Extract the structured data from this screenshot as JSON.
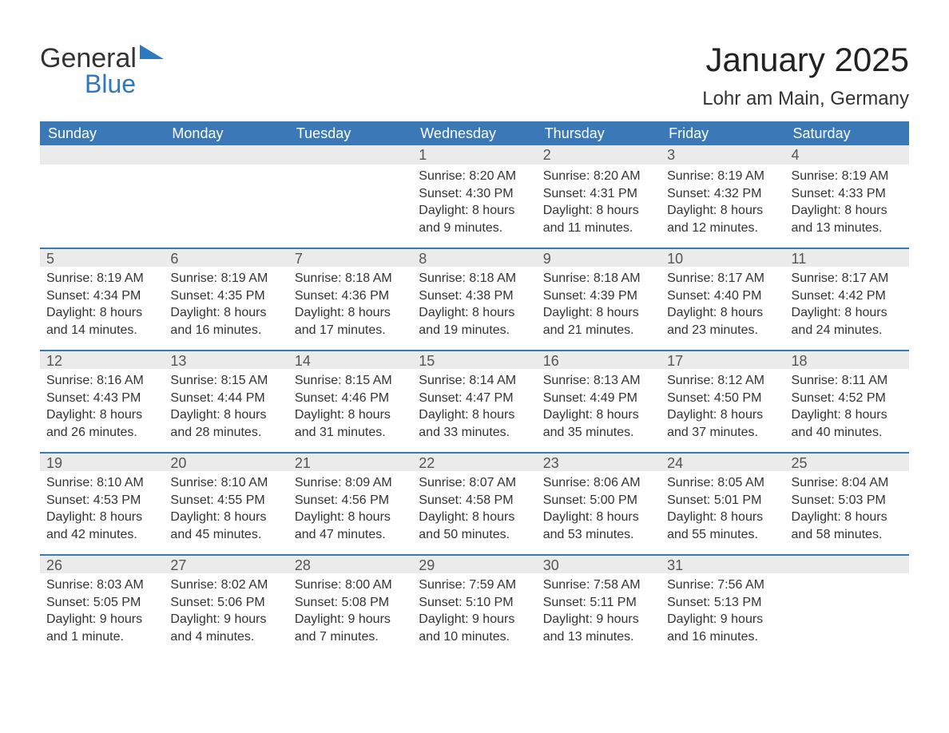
{
  "logo": {
    "word1": "General",
    "word2": "Blue"
  },
  "title": "January 2025",
  "location": "Lohr am Main, Germany",
  "colors": {
    "header_bg": "#3b78b8",
    "header_text": "#ffffff",
    "daynum_bg": "#ebebeb",
    "border": "#3b78b8",
    "body_text": "#333333",
    "logo_blue": "#2f78bf"
  },
  "weekdays": [
    "Sunday",
    "Monday",
    "Tuesday",
    "Wednesday",
    "Thursday",
    "Friday",
    "Saturday"
  ],
  "weeks": [
    [
      {
        "n": "",
        "sr": "",
        "ss": "",
        "dl": ""
      },
      {
        "n": "",
        "sr": "",
        "ss": "",
        "dl": ""
      },
      {
        "n": "",
        "sr": "",
        "ss": "",
        "dl": ""
      },
      {
        "n": "1",
        "sr": "Sunrise: 8:20 AM",
        "ss": "Sunset: 4:30 PM",
        "dl": "Daylight: 8 hours and 9 minutes."
      },
      {
        "n": "2",
        "sr": "Sunrise: 8:20 AM",
        "ss": "Sunset: 4:31 PM",
        "dl": "Daylight: 8 hours and 11 minutes."
      },
      {
        "n": "3",
        "sr": "Sunrise: 8:19 AM",
        "ss": "Sunset: 4:32 PM",
        "dl": "Daylight: 8 hours and 12 minutes."
      },
      {
        "n": "4",
        "sr": "Sunrise: 8:19 AM",
        "ss": "Sunset: 4:33 PM",
        "dl": "Daylight: 8 hours and 13 minutes."
      }
    ],
    [
      {
        "n": "5",
        "sr": "Sunrise: 8:19 AM",
        "ss": "Sunset: 4:34 PM",
        "dl": "Daylight: 8 hours and 14 minutes."
      },
      {
        "n": "6",
        "sr": "Sunrise: 8:19 AM",
        "ss": "Sunset: 4:35 PM",
        "dl": "Daylight: 8 hours and 16 minutes."
      },
      {
        "n": "7",
        "sr": "Sunrise: 8:18 AM",
        "ss": "Sunset: 4:36 PM",
        "dl": "Daylight: 8 hours and 17 minutes."
      },
      {
        "n": "8",
        "sr": "Sunrise: 8:18 AM",
        "ss": "Sunset: 4:38 PM",
        "dl": "Daylight: 8 hours and 19 minutes."
      },
      {
        "n": "9",
        "sr": "Sunrise: 8:18 AM",
        "ss": "Sunset: 4:39 PM",
        "dl": "Daylight: 8 hours and 21 minutes."
      },
      {
        "n": "10",
        "sr": "Sunrise: 8:17 AM",
        "ss": "Sunset: 4:40 PM",
        "dl": "Daylight: 8 hours and 23 minutes."
      },
      {
        "n": "11",
        "sr": "Sunrise: 8:17 AM",
        "ss": "Sunset: 4:42 PM",
        "dl": "Daylight: 8 hours and 24 minutes."
      }
    ],
    [
      {
        "n": "12",
        "sr": "Sunrise: 8:16 AM",
        "ss": "Sunset: 4:43 PM",
        "dl": "Daylight: 8 hours and 26 minutes."
      },
      {
        "n": "13",
        "sr": "Sunrise: 8:15 AM",
        "ss": "Sunset: 4:44 PM",
        "dl": "Daylight: 8 hours and 28 minutes."
      },
      {
        "n": "14",
        "sr": "Sunrise: 8:15 AM",
        "ss": "Sunset: 4:46 PM",
        "dl": "Daylight: 8 hours and 31 minutes."
      },
      {
        "n": "15",
        "sr": "Sunrise: 8:14 AM",
        "ss": "Sunset: 4:47 PM",
        "dl": "Daylight: 8 hours and 33 minutes."
      },
      {
        "n": "16",
        "sr": "Sunrise: 8:13 AM",
        "ss": "Sunset: 4:49 PM",
        "dl": "Daylight: 8 hours and 35 minutes."
      },
      {
        "n": "17",
        "sr": "Sunrise: 8:12 AM",
        "ss": "Sunset: 4:50 PM",
        "dl": "Daylight: 8 hours and 37 minutes."
      },
      {
        "n": "18",
        "sr": "Sunrise: 8:11 AM",
        "ss": "Sunset: 4:52 PM",
        "dl": "Daylight: 8 hours and 40 minutes."
      }
    ],
    [
      {
        "n": "19",
        "sr": "Sunrise: 8:10 AM",
        "ss": "Sunset: 4:53 PM",
        "dl": "Daylight: 8 hours and 42 minutes."
      },
      {
        "n": "20",
        "sr": "Sunrise: 8:10 AM",
        "ss": "Sunset: 4:55 PM",
        "dl": "Daylight: 8 hours and 45 minutes."
      },
      {
        "n": "21",
        "sr": "Sunrise: 8:09 AM",
        "ss": "Sunset: 4:56 PM",
        "dl": "Daylight: 8 hours and 47 minutes."
      },
      {
        "n": "22",
        "sr": "Sunrise: 8:07 AM",
        "ss": "Sunset: 4:58 PM",
        "dl": "Daylight: 8 hours and 50 minutes."
      },
      {
        "n": "23",
        "sr": "Sunrise: 8:06 AM",
        "ss": "Sunset: 5:00 PM",
        "dl": "Daylight: 8 hours and 53 minutes."
      },
      {
        "n": "24",
        "sr": "Sunrise: 8:05 AM",
        "ss": "Sunset: 5:01 PM",
        "dl": "Daylight: 8 hours and 55 minutes."
      },
      {
        "n": "25",
        "sr": "Sunrise: 8:04 AM",
        "ss": "Sunset: 5:03 PM",
        "dl": "Daylight: 8 hours and 58 minutes."
      }
    ],
    [
      {
        "n": "26",
        "sr": "Sunrise: 8:03 AM",
        "ss": "Sunset: 5:05 PM",
        "dl": "Daylight: 9 hours and 1 minute."
      },
      {
        "n": "27",
        "sr": "Sunrise: 8:02 AM",
        "ss": "Sunset: 5:06 PM",
        "dl": "Daylight: 9 hours and 4 minutes."
      },
      {
        "n": "28",
        "sr": "Sunrise: 8:00 AM",
        "ss": "Sunset: 5:08 PM",
        "dl": "Daylight: 9 hours and 7 minutes."
      },
      {
        "n": "29",
        "sr": "Sunrise: 7:59 AM",
        "ss": "Sunset: 5:10 PM",
        "dl": "Daylight: 9 hours and 10 minutes."
      },
      {
        "n": "30",
        "sr": "Sunrise: 7:58 AM",
        "ss": "Sunset: 5:11 PM",
        "dl": "Daylight: 9 hours and 13 minutes."
      },
      {
        "n": "31",
        "sr": "Sunrise: 7:56 AM",
        "ss": "Sunset: 5:13 PM",
        "dl": "Daylight: 9 hours and 16 minutes."
      },
      {
        "n": "",
        "sr": "",
        "ss": "",
        "dl": ""
      }
    ]
  ]
}
